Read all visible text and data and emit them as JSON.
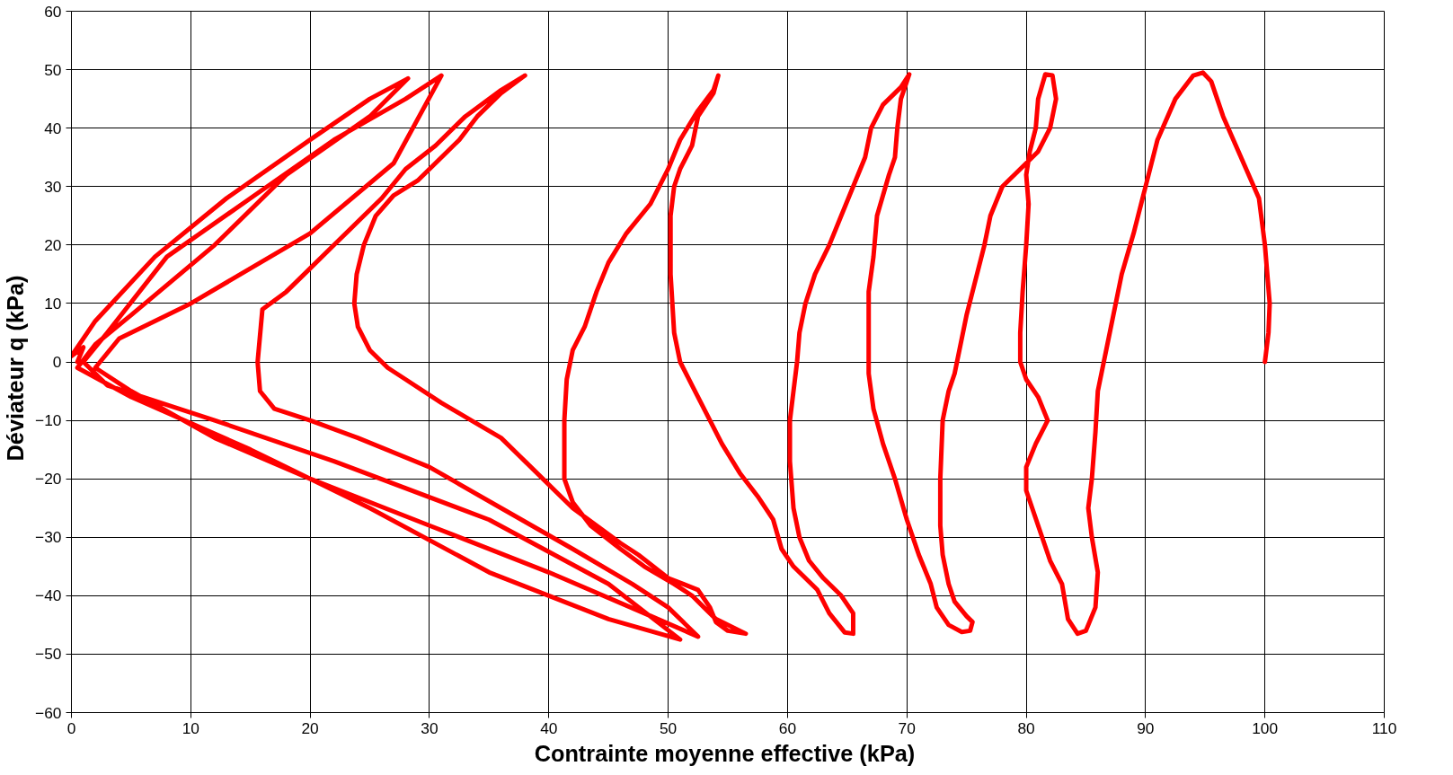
{
  "chart_data": {
    "type": "line",
    "xlabel": "Contrainte moyenne effective  (kPa)",
    "ylabel": "Déviateur  q  (kPa)",
    "xlim": [
      0,
      110
    ],
    "ylim": [
      -60,
      60
    ],
    "xticks": [
      0,
      10,
      20,
      30,
      40,
      50,
      60,
      70,
      80,
      90,
      100,
      110
    ],
    "yticks": [
      -60,
      -50,
      -40,
      -30,
      -20,
      -10,
      0,
      10,
      20,
      30,
      40,
      50,
      60
    ],
    "grid": true,
    "marker": "none",
    "line_style": "solid",
    "series": [
      {
        "color": "#ff0000",
        "x": [
          100,
          100.3,
          100.4,
          100,
          99.5,
          98,
          96.5,
          95.5,
          94.8,
          94,
          92.5,
          91,
          90,
          89,
          88,
          87.5,
          87,
          86.5,
          86,
          85.8,
          85.5,
          85.2,
          85.5,
          86,
          85.8,
          85,
          84.3,
          83.5,
          83,
          82,
          81,
          80,
          80,
          80.8,
          81.8,
          81,
          80,
          79.5,
          79.5,
          79.7,
          80,
          80.2,
          80,
          80.3,
          80.8,
          81,
          81.6,
          82.2,
          82.5,
          82,
          81,
          79.5,
          78,
          77,
          76.5,
          76,
          75.5,
          75,
          74.5,
          74,
          73.5,
          73,
          72.8,
          72.8,
          73,
          73.5,
          74,
          75,
          75.5,
          75.3,
          74.6,
          73.5,
          72.5,
          72,
          71,
          70,
          69,
          68,
          67.2,
          66.8,
          66.8,
          66.8,
          67.2,
          67.5,
          68.5,
          69,
          69.2,
          69.5,
          70.2,
          69.5,
          68,
          67,
          66.5,
          65.5,
          64.5,
          63.5,
          62.3,
          61.5,
          61,
          60.8,
          60.5,
          60.2,
          60.2,
          60.5,
          61,
          61.8,
          63,
          64.5,
          65.5,
          65.5,
          64.8,
          63.5,
          62.5,
          60.5,
          59.5,
          58.8,
          57.5,
          56,
          54.5,
          53.5,
          52,
          51,
          50.5,
          50.2,
          50.2,
          50.5,
          51,
          52,
          52.5,
          53.8,
          54.2,
          53.8,
          52.5,
          51,
          50,
          48.5,
          46.5,
          45,
          44,
          43,
          42,
          41.5,
          41.3,
          41.3,
          42,
          43.5,
          46,
          48,
          50.5,
          52,
          53,
          54,
          56.5,
          55,
          54,
          53.5,
          52.5,
          50,
          47.5,
          46,
          44,
          42,
          38,
          36,
          33.5,
          31,
          28,
          26.5,
          25,
          24,
          23.7,
          23.9,
          24.5,
          25.5,
          27,
          29,
          31,
          32.5,
          34,
          36,
          38,
          36,
          33,
          30.5,
          28,
          26,
          24,
          22,
          20,
          18,
          16,
          15.6,
          15.8,
          17,
          20,
          24,
          30,
          36,
          42,
          47,
          50,
          52.5,
          48,
          40,
          30,
          20,
          12,
          5,
          2,
          4,
          10,
          20,
          27,
          31,
          28,
          22,
          15,
          8,
          3,
          1,
          3,
          12,
          22,
          35,
          45,
          51,
          45,
          35,
          25,
          15,
          5,
          0.5,
          2,
          5,
          12,
          18,
          25,
          28.2,
          25,
          20,
          13,
          7,
          2,
          0,
          1,
          0.5
        ],
        "values": [
          0,
          5,
          10,
          20,
          28,
          35,
          42,
          48,
          49.5,
          49,
          45,
          38,
          30,
          22,
          15,
          10,
          5,
          0,
          -5,
          -12,
          -20,
          -25,
          -30,
          -36,
          -42,
          -46,
          -46.5,
          -44,
          -38,
          -34,
          -28,
          -22,
          -18,
          -14,
          -10,
          -6,
          -3,
          0,
          5,
          12,
          20,
          27,
          32,
          36,
          40,
          45,
          49.2,
          49,
          45,
          40,
          36,
          33,
          30,
          25,
          20,
          16,
          12,
          8,
          3,
          -2,
          -5,
          -10,
          -20,
          -28,
          -33,
          -38,
          -41,
          -43.5,
          -44.5,
          -46,
          -46.2,
          -45,
          -42,
          -38,
          -33,
          -27,
          -20,
          -14,
          -8,
          -2,
          5,
          12,
          18,
          25,
          32,
          35,
          40,
          45,
          49.2,
          47,
          44,
          40,
          35,
          30,
          25,
          20,
          15,
          10,
          5,
          0,
          -5,
          -10,
          -17,
          -25,
          -30,
          -34,
          -37,
          -40,
          -43,
          -46.5,
          -46.3,
          -43,
          -39,
          -35,
          -32,
          -27,
          -23,
          -19,
          -14,
          -10,
          -4,
          0,
          5,
          15,
          25,
          30,
          33,
          37,
          42,
          46,
          49,
          46.5,
          43,
          38,
          33,
          27,
          22,
          17,
          12,
          6,
          2,
          -3,
          -10,
          -20,
          -24,
          -28,
          -32,
          -35,
          -38,
          -40,
          -42,
          -44,
          -46.5,
          -46,
          -44.5,
          -42,
          -39,
          -37,
          -33,
          -31,
          -28,
          -25,
          -17,
          -13,
          -10,
          -7,
          -3,
          -1,
          2,
          6,
          10,
          15,
          20,
          25,
          28.5,
          31,
          35,
          38,
          42,
          46,
          49,
          46.5,
          42,
          37,
          33,
          28,
          24,
          20,
          16,
          12,
          9,
          0,
          -5,
          -8,
          -10,
          -13,
          -18,
          -25,
          -32,
          -38,
          -42,
          -47,
          -43,
          -36,
          -28,
          -20,
          -13,
          -5,
          -1,
          4,
          10,
          22,
          34,
          49,
          45,
          38,
          28,
          18,
          5,
          0,
          -4,
          -10,
          -17,
          -27,
          -38,
          -47.5,
          -44,
          -36,
          -25,
          -15,
          -6,
          -1,
          3,
          8,
          20,
          32,
          42,
          48.5,
          45,
          38,
          28,
          18,
          7,
          1,
          2.5,
          0
        ]
      }
    ]
  }
}
